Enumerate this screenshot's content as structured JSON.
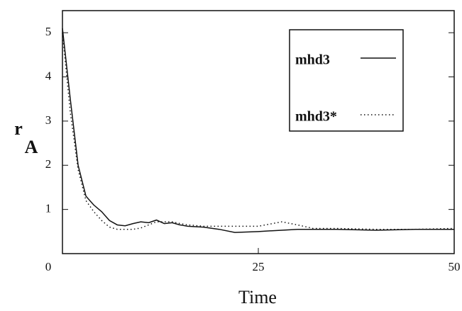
{
  "chart_data": {
    "type": "line",
    "x_label": "Time",
    "y_label": "r",
    "y_label_sub": "A",
    "x": [
      0,
      1,
      2,
      3,
      4,
      5,
      6,
      7,
      8,
      9,
      10,
      11,
      12,
      13,
      14,
      15,
      16,
      18,
      20,
      22,
      25,
      28,
      30,
      32,
      35,
      40,
      45,
      50
    ],
    "series": [
      {
        "name": "mhd3",
        "color": "#111111",
        "dash": "solid",
        "values": [
          5.1,
          3.5,
          2.0,
          1.3,
          1.1,
          0.95,
          0.75,
          0.65,
          0.63,
          0.68,
          0.72,
          0.7,
          0.76,
          0.68,
          0.7,
          0.65,
          0.62,
          0.6,
          0.55,
          0.48,
          0.5,
          0.53,
          0.55,
          0.55,
          0.55,
          0.53,
          0.55,
          0.55
        ]
      },
      {
        "name": "mhd3*",
        "color": "#111111",
        "dash": "dotted",
        "values": [
          5.0,
          3.2,
          1.9,
          1.2,
          0.95,
          0.75,
          0.6,
          0.55,
          0.55,
          0.55,
          0.58,
          0.65,
          0.72,
          0.72,
          0.72,
          0.68,
          0.65,
          0.62,
          0.62,
          0.62,
          0.62,
          0.72,
          0.65,
          0.57,
          0.57,
          0.55,
          0.55,
          0.57
        ]
      }
    ],
    "xlim": [
      0,
      50
    ],
    "xticks": [
      0,
      25,
      50
    ],
    "ylim": [
      0,
      5.5
    ],
    "yticks": [
      1,
      2,
      3,
      4,
      5
    ],
    "legend": "top-right"
  }
}
